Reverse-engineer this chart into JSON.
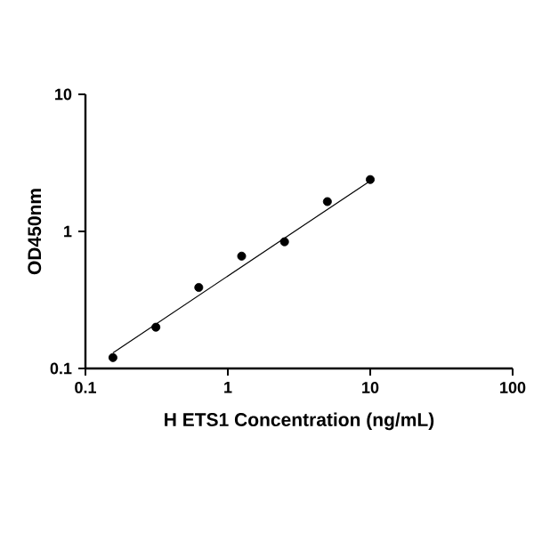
{
  "chart_data": {
    "type": "scatter",
    "xlabel": "H ETS1 Concentration (ng/mL)",
    "ylabel": "OD450nm",
    "log": "xy",
    "xlim": [
      0.1,
      100
    ],
    "ylim": [
      0.1,
      10
    ],
    "xticks": [
      0.1,
      1,
      10,
      100
    ],
    "yticks": [
      0.1,
      1,
      10
    ],
    "grid": false,
    "marker": "circle",
    "series": [
      {
        "color": "#000000",
        "x": [
          0.156,
          0.3125,
          0.625,
          1.25,
          2.5,
          5,
          10
        ],
        "values": [
          0.12,
          0.2,
          0.39,
          0.66,
          0.84,
          1.65,
          2.39
        ]
      },
      {
        "type": "line",
        "color": "#000000",
        "marker": "none",
        "line_style": "solid",
        "x": [
          0.156,
          10
        ],
        "values": [
          0.13,
          2.34
        ]
      }
    ]
  }
}
